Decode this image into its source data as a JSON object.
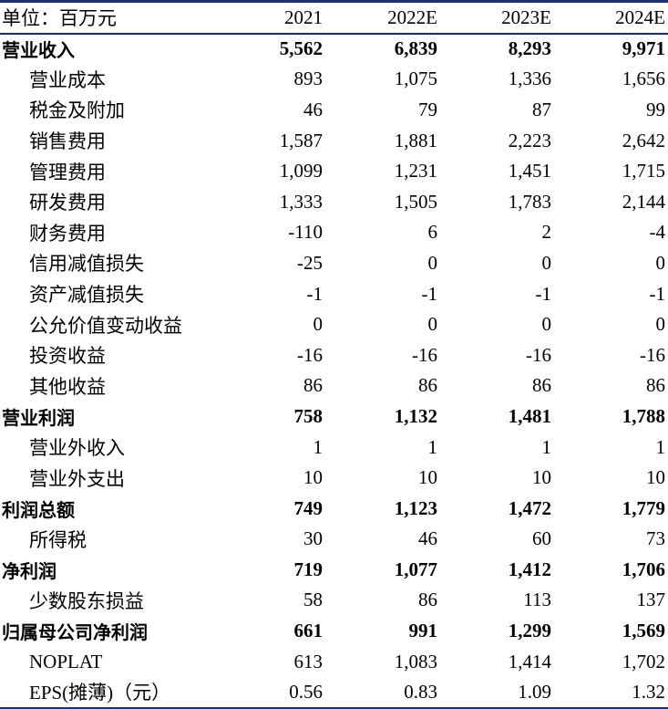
{
  "table": {
    "header": {
      "label": "单位：百万元",
      "years": [
        "2021",
        "2022E",
        "2023E",
        "2024E"
      ]
    },
    "rows": [
      {
        "label": "营业收入",
        "bold": true,
        "values": [
          "5,562",
          "6,839",
          "8,293",
          "9,971"
        ]
      },
      {
        "label": "营业成本",
        "bold": false,
        "values": [
          "893",
          "1,075",
          "1,336",
          "1,656"
        ]
      },
      {
        "label": "税金及附加",
        "bold": false,
        "values": [
          "46",
          "79",
          "87",
          "99"
        ]
      },
      {
        "label": "销售费用",
        "bold": false,
        "values": [
          "1,587",
          "1,881",
          "2,223",
          "2,642"
        ]
      },
      {
        "label": "管理费用",
        "bold": false,
        "values": [
          "1,099",
          "1,231",
          "1,451",
          "1,715"
        ]
      },
      {
        "label": "研发费用",
        "bold": false,
        "values": [
          "1,333",
          "1,505",
          "1,783",
          "2,144"
        ]
      },
      {
        "label": "财务费用",
        "bold": false,
        "values": [
          "-110",
          "6",
          "2",
          "-4"
        ]
      },
      {
        "label": "信用减值损失",
        "bold": false,
        "values": [
          "-25",
          "0",
          "0",
          "0"
        ]
      },
      {
        "label": "资产减值损失",
        "bold": false,
        "values": [
          "-1",
          "-1",
          "-1",
          "-1"
        ]
      },
      {
        "label": "公允价值变动收益",
        "bold": false,
        "values": [
          "0",
          "0",
          "0",
          "0"
        ]
      },
      {
        "label": "投资收益",
        "bold": false,
        "values": [
          "-16",
          "-16",
          "-16",
          "-16"
        ]
      },
      {
        "label": "其他收益",
        "bold": false,
        "values": [
          "86",
          "86",
          "86",
          "86"
        ]
      },
      {
        "label": "营业利润",
        "bold": true,
        "values": [
          "758",
          "1,132",
          "1,481",
          "1,788"
        ]
      },
      {
        "label": "营业外收入",
        "bold": false,
        "values": [
          "1",
          "1",
          "1",
          "1"
        ]
      },
      {
        "label": "营业外支出",
        "bold": false,
        "values": [
          "10",
          "10",
          "10",
          "10"
        ]
      },
      {
        "label": "利润总额",
        "bold": true,
        "values": [
          "749",
          "1,123",
          "1,472",
          "1,779"
        ]
      },
      {
        "label": "所得税",
        "bold": false,
        "values": [
          "30",
          "46",
          "60",
          "73"
        ]
      },
      {
        "label": "净利润",
        "bold": true,
        "values": [
          "719",
          "1,077",
          "1,412",
          "1,706"
        ]
      },
      {
        "label": "少数股东损益",
        "bold": false,
        "values": [
          "58",
          "86",
          "113",
          "137"
        ]
      },
      {
        "label": "归属母公司净利润",
        "bold": true,
        "values": [
          "661",
          "991",
          "1,299",
          "1,569"
        ]
      },
      {
        "label": "NOPLAT",
        "bold": false,
        "values": [
          "613",
          "1,083",
          "1,414",
          "1,702"
        ]
      },
      {
        "label": "EPS(摊薄)（元）",
        "bold": false,
        "values": [
          "0.56",
          "0.83",
          "1.09",
          "1.32"
        ]
      }
    ]
  },
  "colors": {
    "rule": "#1f2f6b",
    "text": "#000000"
  }
}
